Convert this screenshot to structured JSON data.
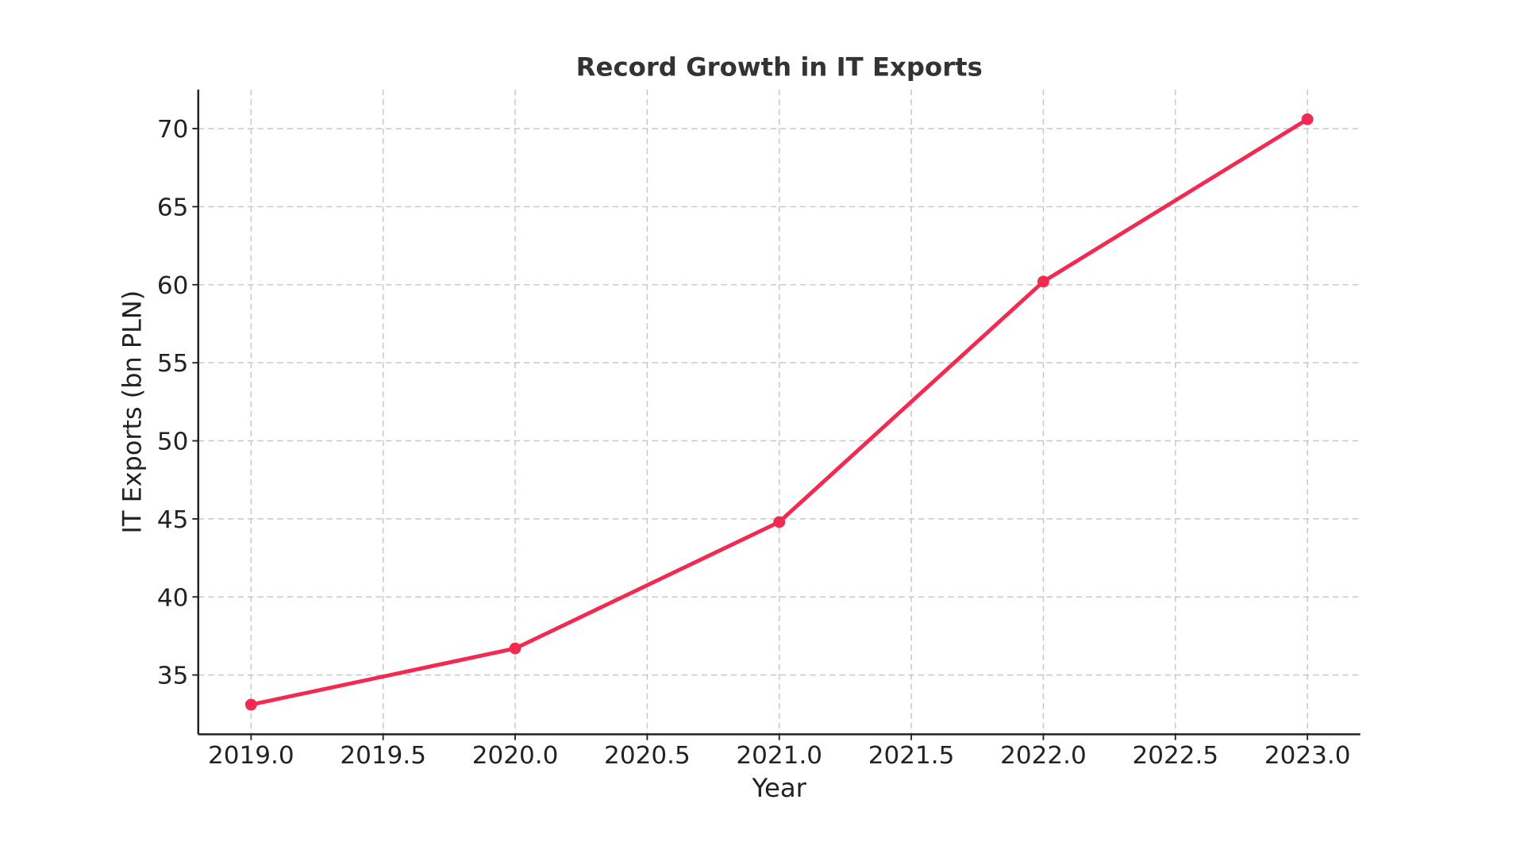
{
  "chart_data": {
    "type": "line",
    "title": "Record Growth in IT Exports",
    "xlabel": "Year",
    "ylabel": "IT Exports (bn PLN)",
    "x": [
      2019,
      2020,
      2021,
      2022,
      2023
    ],
    "series": [
      {
        "values": [
          33.1,
          36.7,
          44.8,
          60.2,
          70.6
        ],
        "color": "#f22a52",
        "marker": "circle"
      }
    ],
    "xticks": [
      "2019.0",
      "2019.5",
      "2020.0",
      "2020.5",
      "2021.0",
      "2021.5",
      "2022.0",
      "2022.5",
      "2023.0"
    ],
    "yticks": [
      "35",
      "40",
      "45",
      "50",
      "55",
      "60",
      "65",
      "70"
    ],
    "xlim": [
      2018.8,
      2023.2
    ],
    "ylim": [
      31.2,
      72.5
    ],
    "grid": true
  }
}
